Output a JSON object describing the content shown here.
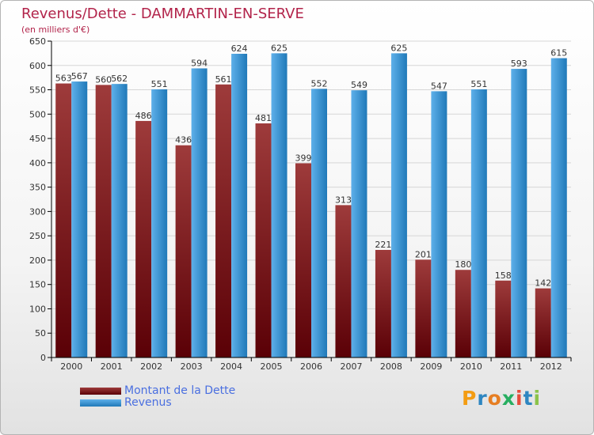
{
  "header": {
    "title": "Revenus/Dette - DAMMARTIN-EN-SERVE",
    "subtitle": "(en milliers d'€)"
  },
  "logo": {
    "text": "Proxiti"
  },
  "colors": {
    "dette_dark": "#5a0006",
    "dette_light": "#9e3b3b",
    "revenus_dark": "#2079b8",
    "revenus_light": "#5eb0ea",
    "grid": "#d6d6d6",
    "axis": "#000000",
    "logo": [
      "#f39c12",
      "#2e86c1",
      "#e67e22",
      "#27ae60",
      "#e74c3c",
      "#2e86c1",
      "#8bc34a"
    ]
  },
  "chart_data": {
    "type": "bar",
    "title": "Revenus/Dette - DAMMARTIN-EN-SERVE",
    "subtitle": "(en milliers d'€)",
    "xlabel": "",
    "ylabel": "",
    "ylim": [
      0,
      650
    ],
    "yticks": [
      0,
      50,
      100,
      150,
      200,
      250,
      300,
      350,
      400,
      450,
      500,
      550,
      600,
      650
    ],
    "grid": true,
    "legend_position": "bottom-left",
    "categories": [
      "2000",
      "2001",
      "2002",
      "2003",
      "2004",
      "2005",
      "2006",
      "2007",
      "2008",
      "2009",
      "2010",
      "2011",
      "2012"
    ],
    "series": [
      {
        "name": "Montant de la Dette",
        "values": [
          563,
          560,
          486,
          436,
          561,
          481,
          399,
          313,
          221,
          201,
          180,
          158,
          142
        ]
      },
      {
        "name": "Revenus",
        "values": [
          567,
          562,
          551,
          594,
          624,
          625,
          552,
          549,
          625,
          547,
          551,
          593,
          615
        ]
      }
    ]
  }
}
